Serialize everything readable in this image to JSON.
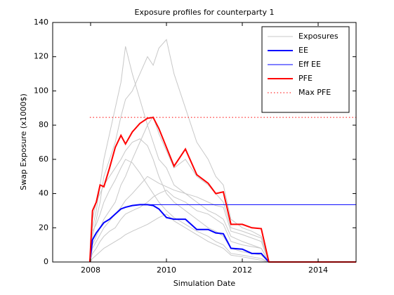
{
  "chart_data": {
    "type": "line",
    "title": "Exposure profiles for counterparty 1",
    "xlabel": "Simulation Date",
    "ylabel": "Swap Exposure (x1000$)",
    "x": [
      2007.98,
      2008.05,
      2008.15,
      2008.25,
      2008.35,
      2008.5,
      2008.65,
      2008.8,
      2008.92,
      2009.1,
      2009.3,
      2009.5,
      2009.65,
      2009.8,
      2010.0,
      2010.2,
      2010.5,
      2010.8,
      2011.1,
      2011.3,
      2011.5,
      2011.7,
      2012.0,
      2012.25,
      2012.5,
      2012.7,
      2013.5,
      2015.0
    ],
    "series": [
      {
        "name": "Exposures",
        "color": "#c8c8c8",
        "width": 1,
        "values": [
          [
            0,
            20,
            30,
            45,
            60,
            75,
            90,
            105,
            126,
            110,
            95,
            80,
            70,
            60,
            55,
            45,
            40,
            35,
            30,
            28,
            25,
            15,
            12,
            10,
            8,
            0,
            0,
            0
          ],
          [
            0,
            15,
            25,
            35,
            50,
            60,
            70,
            85,
            95,
            100,
            110,
            120,
            115,
            125,
            130,
            110,
            90,
            70,
            60,
            50,
            45,
            25,
            20,
            18,
            15,
            0,
            0,
            0
          ],
          [
            0,
            10,
            15,
            20,
            25,
            30,
            35,
            45,
            50,
            60,
            70,
            80,
            85,
            75,
            65,
            55,
            60,
            50,
            45,
            40,
            35,
            20,
            18,
            16,
            14,
            0,
            0,
            0
          ],
          [
            0,
            25,
            35,
            40,
            45,
            50,
            55,
            60,
            65,
            70,
            72,
            68,
            60,
            50,
            40,
            35,
            30,
            25,
            20,
            18,
            15,
            8,
            6,
            5,
            4,
            0,
            0,
            0
          ],
          [
            0,
            5,
            8,
            12,
            15,
            18,
            20,
            25,
            28,
            30,
            32,
            35,
            38,
            40,
            42,
            38,
            35,
            30,
            28,
            25,
            22,
            12,
            10,
            9,
            8,
            0,
            0,
            0
          ],
          [
            0,
            18,
            22,
            28,
            35,
            42,
            48,
            55,
            60,
            58,
            52,
            45,
            40,
            35,
            30,
            26,
            22,
            18,
            15,
            12,
            10,
            5,
            4,
            3,
            2,
            0,
            0,
            0
          ],
          [
            0,
            8,
            12,
            16,
            20,
            24,
            28,
            32,
            36,
            40,
            45,
            50,
            48,
            46,
            44,
            42,
            40,
            38,
            35,
            33,
            32,
            18,
            16,
            14,
            12,
            0,
            0,
            0
          ],
          [
            0,
            2,
            4,
            6,
            8,
            10,
            12,
            14,
            16,
            18,
            20,
            22,
            24,
            26,
            28,
            24,
            20,
            16,
            12,
            10,
            8,
            4,
            3,
            2,
            1,
            0,
            0,
            0
          ]
        ]
      },
      {
        "name": "EE",
        "color": "#0000ff",
        "width": 2,
        "values": [
          0,
          13,
          17,
          20,
          23,
          25,
          28,
          31,
          32,
          33,
          33.5,
          33.5,
          33,
          31,
          26,
          25,
          25,
          19,
          19,
          17,
          16.5,
          8,
          7.5,
          5,
          5,
          0,
          0,
          0
        ]
      },
      {
        "name": "Eff EE",
        "color": "#0000ff",
        "width": 1,
        "values": [
          0,
          13,
          17,
          20,
          23,
          25,
          28,
          31,
          32,
          33,
          33.5,
          33.5,
          33.5,
          33.5,
          33.5,
          33.5,
          33.5,
          33.5,
          33.5,
          33.5,
          33.5,
          33.5,
          33.5,
          33.5,
          33.5,
          33.5,
          33.5,
          33.5
        ]
      },
      {
        "name": "PFE",
        "color": "#ff0000",
        "width": 2,
        "values": [
          0,
          30,
          35,
          45,
          44,
          55,
          67,
          74,
          69,
          76,
          81,
          84,
          84.5,
          78,
          67,
          56,
          66,
          51,
          46,
          40,
          41,
          22,
          22,
          20,
          19.5,
          0,
          0,
          0
        ]
      },
      {
        "name": "Max PFE",
        "color": "#ff0000",
        "width": 1,
        "dash": "dotted",
        "value": 84.5
      }
    ],
    "xlim": [
      2007,
      2015
    ],
    "xticks": [
      2008,
      2010,
      2012,
      2014
    ],
    "ylim": [
      0,
      140
    ],
    "yticks": [
      0,
      20,
      40,
      60,
      80,
      100,
      120,
      140
    ],
    "legend": "upper right",
    "grid": false
  }
}
